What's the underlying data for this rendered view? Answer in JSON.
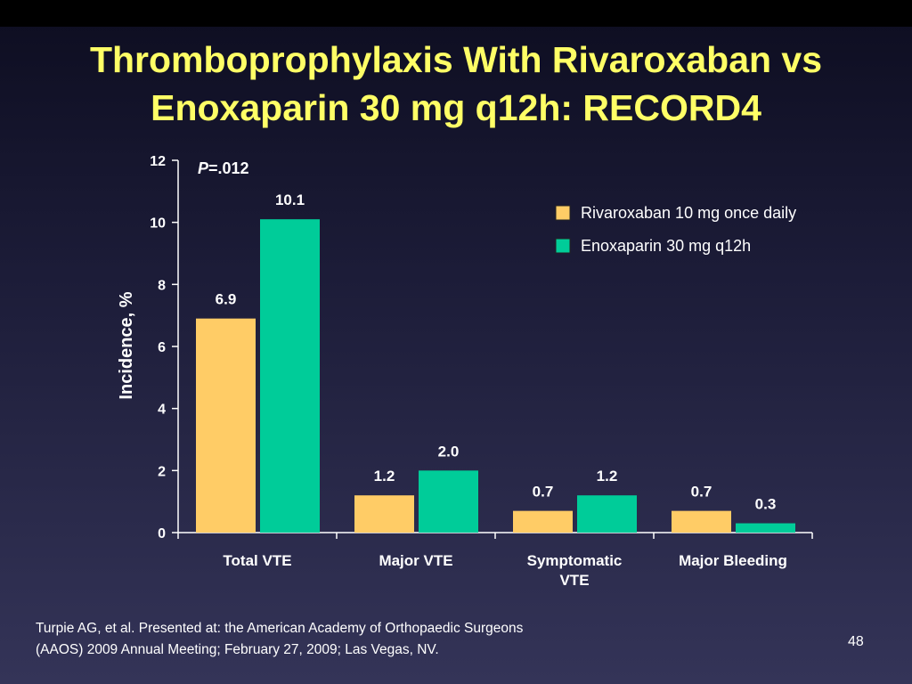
{
  "slide": {
    "title_line1": "Thromboprophylaxis With Rivaroxaban vs",
    "title_line2": "Enoxaparin 30 mg q12h: RECORD4",
    "citation_line1": "Turpie AG, et al. Presented at: the American Academy of Orthopaedic Surgeons",
    "citation_line2": "(AAOS) 2009 Annual Meeting; February 27, 2009; Las Vegas, NV.",
    "page_number": "48",
    "colors": {
      "title": "#ffff66",
      "background": "#1c1c38"
    }
  },
  "chart_data": {
    "type": "bar",
    "categories": [
      "Total VTE",
      "Major VTE",
      "Symptomatic VTE",
      "Major Bleeding"
    ],
    "category_label_lines": [
      [
        "Total VTE"
      ],
      [
        "Major VTE"
      ],
      [
        "Symptomatic",
        "VTE"
      ],
      [
        "Major Bleeding"
      ]
    ],
    "series": [
      {
        "name": "Rivaroxaban 10 mg once daily",
        "values": [
          6.9,
          1.2,
          0.7,
          0.7
        ],
        "labels": [
          "6.9",
          "1.2",
          "0.7",
          "0.7"
        ],
        "color": "#ffcc66"
      },
      {
        "name": "Enoxaparin 30 mg q12h",
        "values": [
          10.1,
          2.0,
          1.2,
          0.3
        ],
        "labels": [
          "10.1",
          "2.0",
          "1.2",
          "0.3"
        ],
        "color": "#00cc99"
      }
    ],
    "ylabel": "Incidence, %",
    "ylim": [
      0,
      12
    ],
    "yticks": [
      0,
      2,
      4,
      6,
      8,
      10,
      12
    ],
    "grid": false,
    "legend_position": "top-right",
    "annotation": {
      "italic_part": "P",
      "rest": "=.012"
    }
  }
}
